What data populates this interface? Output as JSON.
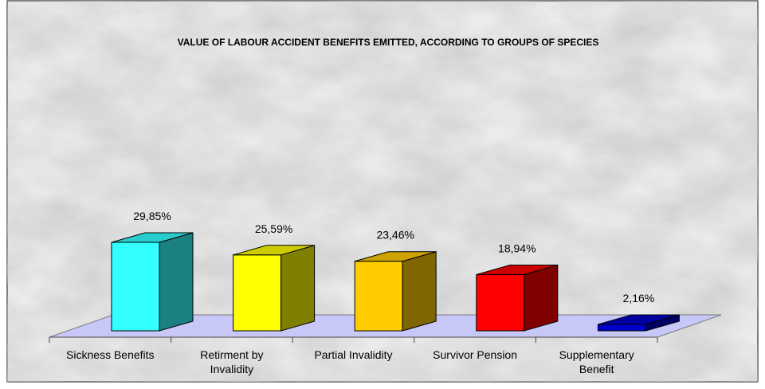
{
  "chart_data": {
    "type": "bar3d",
    "title": "VALUE OF LABOUR ACCIDENT BENEFITS EMITTED, ACCORDING TO GROUPS OF SPECIES",
    "categories": [
      "Sickness Benefits",
      "Retirment by Invalidity",
      "Partial Invalidity",
      "Survivor Pension",
      "Supplementary Benefit"
    ],
    "values": [
      29.85,
      25.59,
      23.46,
      18.94,
      2.16
    ],
    "value_labels": [
      "29,85%",
      "25,59%",
      "23,46%",
      "18,94%",
      "2,16%"
    ],
    "colors": [
      "#33ffff",
      "#ffff00",
      "#ffcc00",
      "#ff0000",
      "#0000cc"
    ]
  }
}
